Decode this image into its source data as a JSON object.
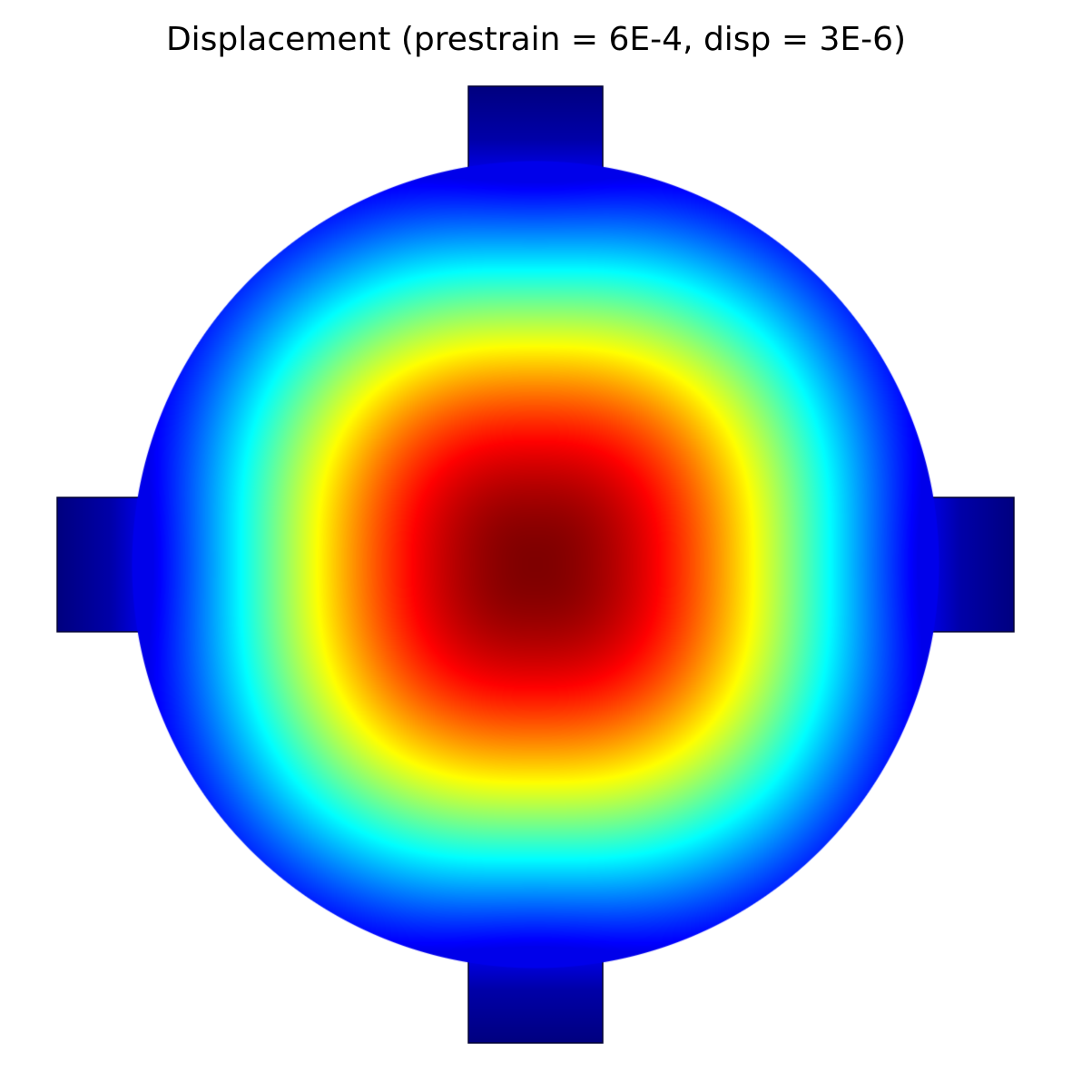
{
  "chart_data": {
    "type": "heatmap",
    "title": "Displacement (prestrain = 6E-4, disp = 3E-6)",
    "xlabel": "",
    "ylabel": "",
    "grid": false,
    "legend": "none",
    "axes_visible": false,
    "colormap": "jet",
    "colormap_stops": [
      "#00007f",
      "#0000ff",
      "#00ffff",
      "#ffff00",
      "#ff0000",
      "#7f0000"
    ],
    "geometry": "circular plate with four rectangular clamp tabs (top, bottom, left, right)",
    "field_shape": "rounded-square contours, maximum at plate center, minimum at clamp tabs",
    "field_min_color": "#00007f",
    "field_max_color": "#7f0000"
  }
}
